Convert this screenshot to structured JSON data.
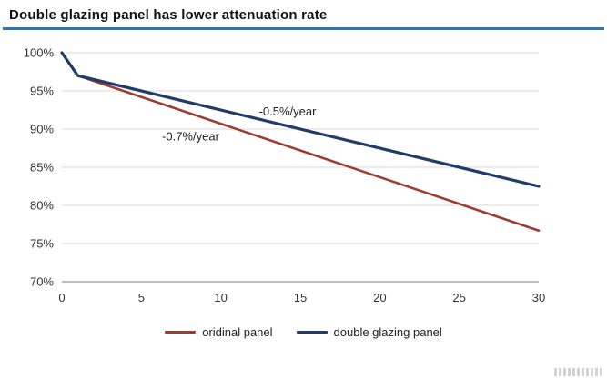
{
  "title": "Double glazing panel has lower attenuation rate",
  "colors": {
    "title_rule": "#2e75b6",
    "grid": "#d9d9d9",
    "axis": "#999999",
    "text": "#333333",
    "annotation": "#222222"
  },
  "chart_data": {
    "type": "line",
    "title": "Double glazing panel has lower attenuation rate",
    "xlabel": "",
    "ylabel": "",
    "xlim": [
      0,
      30
    ],
    "ylim": [
      70,
      100
    ],
    "xticks": [
      0,
      5,
      10,
      15,
      20,
      25,
      30
    ],
    "yticks": [
      70,
      75,
      80,
      85,
      90,
      95,
      100
    ],
    "ytick_suffix": "%",
    "grid": "horizontal",
    "legend_position": "bottom",
    "series": [
      {
        "name": "oridinal panel",
        "color": "#9e3b33",
        "rate_label": "-0.7%/year",
        "x": [
          0,
          1,
          30
        ],
        "y": [
          100,
          97,
          76.7
        ]
      },
      {
        "name": "double glazing panel",
        "color": "#1f3d68",
        "rate_label": "-0.5%/year",
        "x": [
          0,
          1,
          30
        ],
        "y": [
          100,
          97,
          82.5
        ]
      }
    ],
    "annotations": [
      {
        "text": "-0.5%/year",
        "x": 12.4,
        "y": 91.8
      },
      {
        "text": "-0.7%/year",
        "x": 6.3,
        "y": 88.5
      }
    ]
  },
  "legend": {
    "items": [
      {
        "label": "oridinal panel",
        "color": "#9e3b33"
      },
      {
        "label": "double glazing panel",
        "color": "#1f3d68"
      }
    ]
  }
}
